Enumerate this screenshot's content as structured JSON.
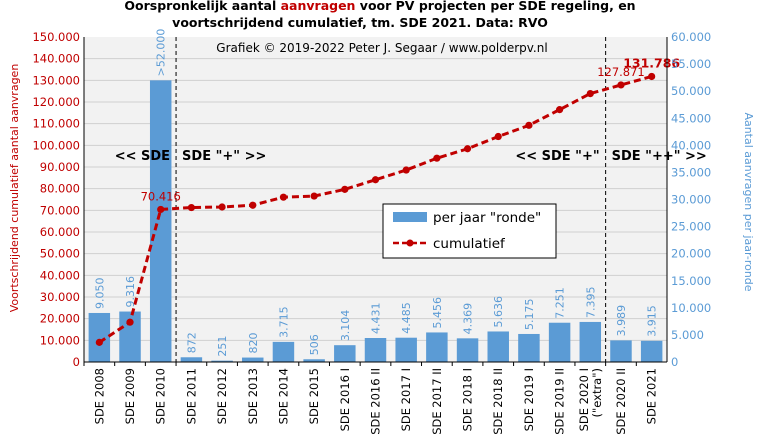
{
  "chart_data": {
    "type": "bar",
    "title_part1": "Oorspronkelijk  aantal ",
    "title_highlight": "aanvragen",
    "title_part2": " voor PV projecten per SDE regeling, en",
    "title_line2": "voortschrijdend  cumulatief, tm. SDE 2021. Data: RVO",
    "credit": "Grafiek  © 2019-2022  Peter J. Segaar / www.polderpv.nl",
    "ylabel_left": "Voortschrijdend cumulatief aantal aanvragen",
    "ylabel_right": "Aantal aanvragen per jaar-ronde",
    "ylim_left": [
      0,
      150000
    ],
    "ylim_right": [
      0,
      60000
    ],
    "left_ticks": [
      "0",
      "10.000",
      "20.000",
      "30.000",
      "40.000",
      "50.000",
      "60.000",
      "70.000",
      "80.000",
      "90.000",
      "100.000",
      "110.000",
      "120.000",
      "130.000",
      "140.000",
      "150.000"
    ],
    "right_ticks": [
      "0",
      "5.000",
      "10.000",
      "15.000",
      "20.000",
      "25.000",
      "30.000",
      "35.000",
      "40.000",
      "45.000",
      "50.000",
      "55.000",
      "60.000"
    ],
    "categories": [
      "SDE 2008",
      "SDE 2009",
      "SDE 2010",
      "SDE 2011",
      "SDE 2012",
      "SDE 2013",
      "SDE 2014",
      "SDE 2015",
      "SDE 2016 I",
      "SDE 2016 II",
      "SDE 2017 I",
      "SDE 2017 II",
      "SDE 2018 I",
      "SDE 2018 II",
      "SDE 2019 I",
      "SDE 2019 II",
      "SDE 2020 I",
      [
        "SDE 2020 II"
      ],
      "SDE 2021"
    ],
    "category_lines": [
      [
        "SDE 2008"
      ],
      [
        "SDE 2009"
      ],
      [
        "SDE 2010"
      ],
      [
        "SDE 2011"
      ],
      [
        "SDE 2012"
      ],
      [
        "SDE 2013"
      ],
      [
        "SDE 2014"
      ],
      [
        "SDE 2015"
      ],
      [
        "SDE 2016 I"
      ],
      [
        "SDE 2016 II"
      ],
      [
        "SDE 2017 I"
      ],
      [
        "SDE 2017 II"
      ],
      [
        "SDE 2018 I"
      ],
      [
        "SDE 2018 II"
      ],
      [
        "SDE 2019 I"
      ],
      [
        "SDE 2019 II"
      ],
      [
        "SDE 2020 I",
        "(\"extra\")"
      ],
      [
        "SDE 2020 II"
      ],
      [
        "SDE 2021"
      ]
    ],
    "series": [
      {
        "name": "per jaar \"ronde\"",
        "axis": "right",
        "color": "#5b9bd5",
        "values": [
          9050,
          9316,
          52000,
          872,
          251,
          820,
          3715,
          506,
          3104,
          4431,
          4485,
          5456,
          4369,
          5636,
          5175,
          7251,
          7395,
          3989,
          3915
        ],
        "labels": [
          "9.050",
          "9.316",
          ">52.000",
          "872",
          "251",
          "820",
          "3.715",
          "506",
          "3.104",
          "4.431",
          "4.485",
          "5.456",
          "4.369",
          "5.636",
          "5.175",
          "7.251",
          "7.395",
          "3.989",
          "3.915"
        ]
      },
      {
        "name": "cumulatief",
        "axis": "left",
        "color": "#c00000",
        "values": [
          9050,
          18366,
          70416,
          71288,
          71539,
          72359,
          76074,
          76580,
          79684,
          84115,
          88600,
          94056,
          98425,
          104061,
          109236,
          116487,
          123882,
          127871,
          131786
        ]
      }
    ],
    "cumulative_callouts": [
      {
        "index": 2,
        "text": "70.416",
        "bold": false
      },
      {
        "index": 17,
        "text": "127.871",
        "bold": false
      },
      {
        "index": 18,
        "text": "131.786",
        "bold": true
      }
    ],
    "period_labels": [
      {
        "text": "<< SDE",
        "side": "left",
        "boundary": 1
      },
      {
        "text": "SDE \"+\"  >>",
        "side": "right",
        "boundary": 1
      },
      {
        "text": "<< SDE \"+\"",
        "side": "left",
        "boundary": 2
      },
      {
        "text": "SDE \"++\"  >>",
        "side": "right",
        "boundary": 2
      }
    ],
    "period_boundaries": [
      2.5,
      16.5
    ],
    "legend": {
      "placement": "center-right"
    },
    "grid": true
  }
}
